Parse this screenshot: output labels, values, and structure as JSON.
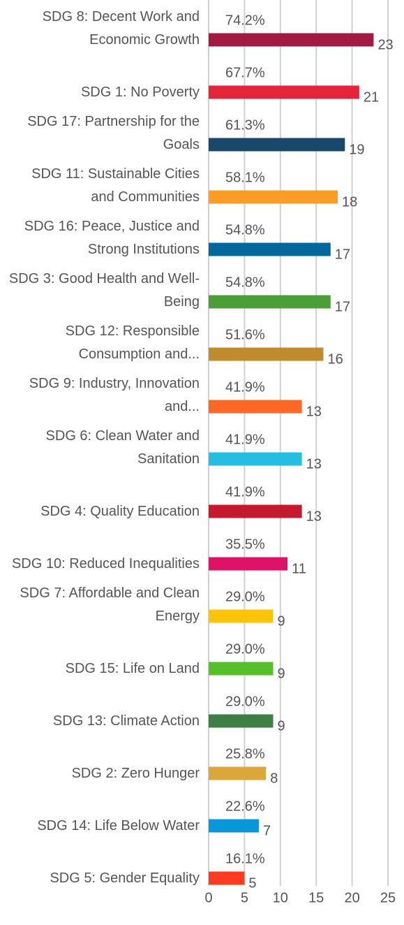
{
  "chart_data": {
    "type": "barh",
    "categories": [
      "SDG 8: Decent Work and Economic Growth",
      "SDG 1: No Poverty",
      "SDG 17: Partnership for the Goals",
      "SDG 11: Sustainable Cities and Communities",
      "SDG 16: Peace, Justice and Strong Institutions",
      "SDG 3: Good Health and Well-Being",
      "SDG 12: Responsible Consumption and...",
      "SDG 9: Industry, Innovation and...",
      "SDG 6: Clean Water and Sanitation",
      "SDG 4: Quality Education",
      "SDG 10: Reduced Inequalities",
      "SDG 7: Affordable and Clean Energy",
      "SDG 15: Life on Land",
      "SDG 13: Climate Action",
      "SDG 2: Zero Hunger",
      "SDG 14: Life Below Water",
      "SDG 5: Gender Equality"
    ],
    "values": [
      23,
      21,
      19,
      18,
      17,
      17,
      16,
      13,
      13,
      13,
      11,
      9,
      9,
      9,
      8,
      7,
      5
    ],
    "percent_labels": [
      "74.2%",
      "67.7%",
      "61.3%",
      "58.1%",
      "54.8%",
      "54.8%",
      "51.6%",
      "41.9%",
      "41.9%",
      "41.9%",
      "35.5%",
      "29.0%",
      "29.0%",
      "29.0%",
      "25.8%",
      "22.6%",
      "16.1%"
    ],
    "colors": [
      "#a21942",
      "#e5243b",
      "#19486a",
      "#fd9d24",
      "#00689d",
      "#4c9f38",
      "#bf8b2e",
      "#fd6925",
      "#26bde2",
      "#c5192d",
      "#dd1367",
      "#fcc30b",
      "#56c02b",
      "#3f7e44",
      "#dda63a",
      "#0a97d9",
      "#ff3a21"
    ],
    "xlim": [
      0,
      25
    ],
    "xticks": [
      0,
      5,
      10,
      15,
      20,
      25
    ],
    "grid": true
  }
}
